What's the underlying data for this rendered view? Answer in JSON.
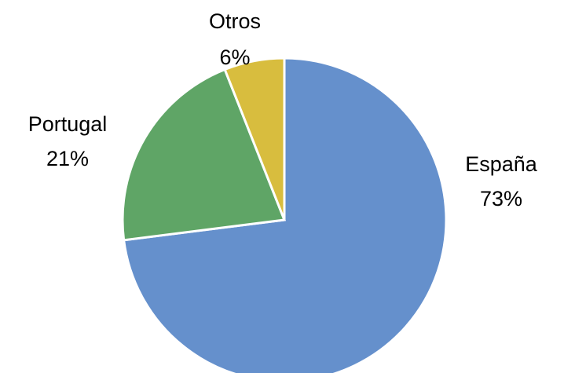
{
  "chart_data": {
    "type": "pie",
    "title": "",
    "categories": [
      "España",
      "Portugal",
      "Otros"
    ],
    "values": [
      73,
      21,
      6
    ],
    "labels": [
      "73%",
      "21%",
      "6%"
    ],
    "colors": [
      "#6590CC",
      "#5FA566",
      "#D8BD3E"
    ],
    "start_angle_deg": 0,
    "direction": "clockwise",
    "legend": "none"
  }
}
